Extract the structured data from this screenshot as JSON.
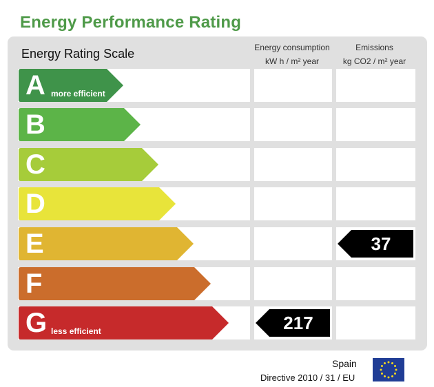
{
  "title": "Energy Performance Rating",
  "scale_label": "Energy Rating Scale",
  "columns": {
    "consumption_line1": "Energy consumption",
    "consumption_line2": "kW h / m² year",
    "emissions_line1": "Emissions",
    "emissions_line2": "kg CO2 / m² year"
  },
  "ratings": [
    {
      "letter": "A",
      "note": "more efficient",
      "color": "#3f934a"
    },
    {
      "letter": "B",
      "note": "",
      "color": "#5cb448"
    },
    {
      "letter": "C",
      "note": "",
      "color": "#a6cc3a"
    },
    {
      "letter": "D",
      "note": "",
      "color": "#e8e43a"
    },
    {
      "letter": "E",
      "note": "",
      "color": "#e0b532"
    },
    {
      "letter": "F",
      "note": "",
      "color": "#cb6d2c"
    },
    {
      "letter": "G",
      "note": "less efficient",
      "color": "#c62a2b"
    }
  ],
  "consumption": {
    "rating": "G",
    "value": "217"
  },
  "emissions": {
    "rating": "E",
    "value": "37"
  },
  "footer": {
    "country": "Spain",
    "directive": "Directive 2010 / 31 / EU"
  },
  "icons": {
    "flag": "eu-flag-icon"
  }
}
